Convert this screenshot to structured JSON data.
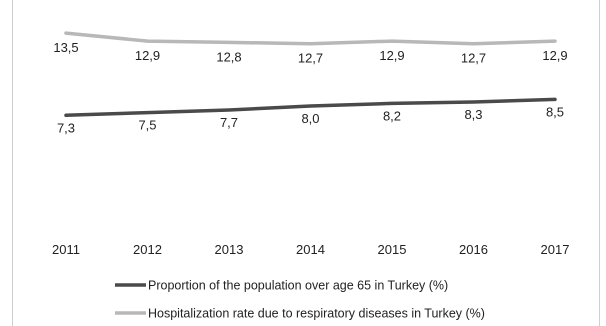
{
  "chart_data": {
    "type": "line",
    "categories": [
      "2011",
      "2012",
      "2013",
      "2014",
      "2015",
      "2016",
      "2017"
    ],
    "series": [
      {
        "name": "Proportion of the population over age 65 in Turkey (%)",
        "values": [
          7.3,
          7.5,
          7.7,
          8.0,
          8.2,
          8.3,
          8.5
        ],
        "labels": [
          "7,3",
          "7,5",
          "7,7",
          "8,0",
          "8,2",
          "8,3",
          "8,5"
        ],
        "color": "#4a4a4a"
      },
      {
        "name": "Hospitalization rate due to respiratory diseases in Turkey (%)",
        "values": [
          13.5,
          12.9,
          12.8,
          12.7,
          12.9,
          12.7,
          12.9
        ],
        "labels": [
          "13,5",
          "12,9",
          "12,8",
          "12,7",
          "12,9",
          "12,7",
          "12,9"
        ],
        "color": "#b8b8b8"
      }
    ],
    "ylim": [
      0,
      16
    ],
    "grid": false,
    "legend_position": "bottom"
  }
}
